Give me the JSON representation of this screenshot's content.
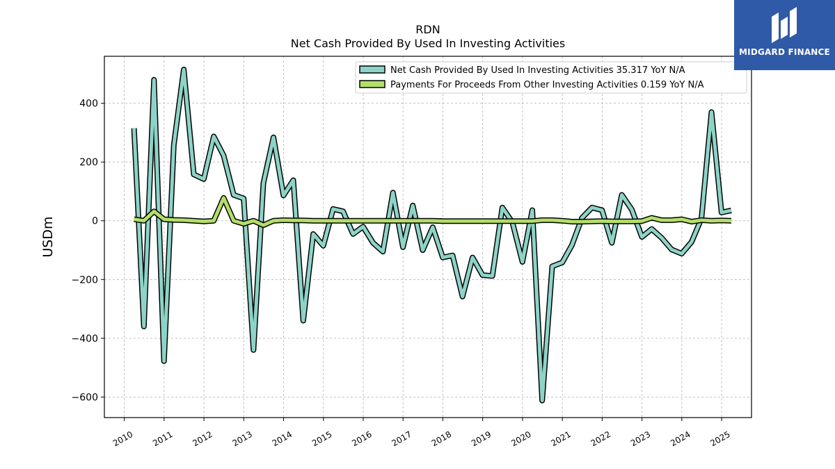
{
  "chart_data": {
    "type": "line",
    "title": "RDN",
    "subtitle": "Net Cash Provided By Used In Investing Activities",
    "ylabel": "USDm",
    "xlabel": "",
    "xlim": [
      2009.5,
      2025.75
    ],
    "ylim": [
      -670,
      560
    ],
    "yticks": [
      400,
      200,
      0,
      -200,
      -400,
      -600
    ],
    "ytick_labels": [
      "400",
      "200",
      "0",
      "−200",
      "−400",
      "−600"
    ],
    "xticks": [
      2010,
      2011,
      2012,
      2013,
      2014,
      2015,
      2016,
      2017,
      2018,
      2019,
      2020,
      2021,
      2022,
      2023,
      2024,
      2025
    ],
    "xtick_labels": [
      "2010",
      "2011",
      "2012",
      "2013",
      "2014",
      "2015",
      "2016",
      "2017",
      "2018",
      "2019",
      "2020",
      "2021",
      "2022",
      "2023",
      "2024",
      "2025"
    ],
    "grid": true,
    "legend_position": "top-right",
    "series": [
      {
        "name": "Net Cash Provided By Used In Investing Activities",
        "legend_label": "Net Cash Provided By Used In Investing Activities  35.317 YoY N/A",
        "color": "#8dd3c7",
        "points": [
          [
            "2010-03-31",
            315
          ],
          [
            "2010-06-30",
            -360
          ],
          [
            "2010-09-30",
            480
          ],
          [
            "2010-12-31",
            -478
          ],
          [
            "2011-03-31",
            258
          ],
          [
            "2011-06-30",
            515
          ],
          [
            "2011-09-30",
            158
          ],
          [
            "2011-12-31",
            142
          ],
          [
            "2012-03-31",
            287
          ],
          [
            "2012-06-30",
            222
          ],
          [
            "2012-09-30",
            88
          ],
          [
            "2012-12-31",
            76
          ],
          [
            "2013-03-31",
            -440
          ],
          [
            "2013-06-30",
            128
          ],
          [
            "2013-09-30",
            284
          ],
          [
            "2013-12-31",
            86
          ],
          [
            "2014-03-31",
            138
          ],
          [
            "2014-06-30",
            -340
          ],
          [
            "2014-09-30",
            -45
          ],
          [
            "2014-12-31",
            -85
          ],
          [
            "2015-03-31",
            40
          ],
          [
            "2015-06-30",
            32
          ],
          [
            "2015-09-30",
            -45
          ],
          [
            "2015-12-31",
            -20
          ],
          [
            "2016-03-31",
            -75
          ],
          [
            "2016-06-30",
            -105
          ],
          [
            "2016-09-30",
            96
          ],
          [
            "2016-12-31",
            -90
          ],
          [
            "2017-03-31",
            52
          ],
          [
            "2017-06-30",
            -100
          ],
          [
            "2017-09-30",
            -22
          ],
          [
            "2017-12-31",
            -125
          ],
          [
            "2018-03-31",
            -118
          ],
          [
            "2018-06-30",
            -258
          ],
          [
            "2018-09-30",
            -125
          ],
          [
            "2018-12-31",
            -185
          ],
          [
            "2019-03-31",
            -188
          ],
          [
            "2019-06-30",
            45
          ],
          [
            "2019-09-30",
            -5
          ],
          [
            "2019-12-31",
            -140
          ],
          [
            "2020-03-31",
            36
          ],
          [
            "2020-06-30",
            -612
          ],
          [
            "2020-09-30",
            -155
          ],
          [
            "2020-12-31",
            -142
          ],
          [
            "2021-03-31",
            -82
          ],
          [
            "2021-06-30",
            10
          ],
          [
            "2021-09-30",
            45
          ],
          [
            "2021-12-31",
            36
          ],
          [
            "2022-03-31",
            -75
          ],
          [
            "2022-06-30",
            88
          ],
          [
            "2022-09-30",
            38
          ],
          [
            "2022-12-31",
            -55
          ],
          [
            "2023-03-31",
            -28
          ],
          [
            "2023-06-30",
            -58
          ],
          [
            "2023-09-30",
            -98
          ],
          [
            "2023-12-31",
            -112
          ],
          [
            "2024-03-31",
            -72
          ],
          [
            "2024-06-30",
            8
          ],
          [
            "2024-09-30",
            370
          ],
          [
            "2024-12-31",
            28
          ],
          [
            "2025-03-31",
            35.317
          ]
        ]
      },
      {
        "name": "Payments For Proceeds From Other Investing Activities",
        "legend_label": "Payments For Proceeds From Other Investing Activities  0.159 YoY N/A",
        "color": "#b3de69",
        "points": [
          [
            "2010-03-31",
            5
          ],
          [
            "2010-06-30",
            0
          ],
          [
            "2010-09-30",
            32
          ],
          [
            "2010-12-31",
            5
          ],
          [
            "2011-03-31",
            3
          ],
          [
            "2011-06-30",
            2
          ],
          [
            "2011-09-30",
            0
          ],
          [
            "2011-12-31",
            -2
          ],
          [
            "2012-03-31",
            0
          ],
          [
            "2012-06-30",
            78
          ],
          [
            "2012-09-30",
            0
          ],
          [
            "2012-12-31",
            -10
          ],
          [
            "2013-03-31",
            0
          ],
          [
            "2013-06-30",
            -15
          ],
          [
            "2013-09-30",
            0
          ],
          [
            "2013-12-31",
            2
          ],
          [
            "2014-03-31",
            1
          ],
          [
            "2014-06-30",
            1
          ],
          [
            "2014-09-30",
            0
          ],
          [
            "2014-12-31",
            0
          ],
          [
            "2015-03-31",
            0
          ],
          [
            "2015-06-30",
            0
          ],
          [
            "2015-09-30",
            0
          ],
          [
            "2015-12-31",
            0
          ],
          [
            "2016-03-31",
            0
          ],
          [
            "2016-06-30",
            0
          ],
          [
            "2016-09-30",
            0
          ],
          [
            "2016-12-31",
            0
          ],
          [
            "2017-03-31",
            0
          ],
          [
            "2017-06-30",
            0
          ],
          [
            "2017-09-30",
            0
          ],
          [
            "2017-12-31",
            -1
          ],
          [
            "2018-03-31",
            -1
          ],
          [
            "2018-06-30",
            -1
          ],
          [
            "2018-09-30",
            -1
          ],
          [
            "2018-12-31",
            -1
          ],
          [
            "2019-03-31",
            -1
          ],
          [
            "2019-06-30",
            -1
          ],
          [
            "2019-09-30",
            -1
          ],
          [
            "2019-12-31",
            -1
          ],
          [
            "2020-03-31",
            -1
          ],
          [
            "2020-06-30",
            2
          ],
          [
            "2020-09-30",
            2
          ],
          [
            "2020-12-31",
            0
          ],
          [
            "2021-03-31",
            -3
          ],
          [
            "2021-06-30",
            -3
          ],
          [
            "2021-09-30",
            -2
          ],
          [
            "2021-12-31",
            -1
          ],
          [
            "2022-03-31",
            -2
          ],
          [
            "2022-06-30",
            -2
          ],
          [
            "2022-09-30",
            -2
          ],
          [
            "2022-12-31",
            -1
          ],
          [
            "2023-03-31",
            10
          ],
          [
            "2023-06-30",
            2
          ],
          [
            "2023-09-30",
            2
          ],
          [
            "2023-12-31",
            5
          ],
          [
            "2024-03-31",
            -3
          ],
          [
            "2024-06-30",
            2
          ],
          [
            "2024-09-30",
            0
          ],
          [
            "2024-12-31",
            1
          ],
          [
            "2025-03-31",
            0.159
          ]
        ]
      }
    ]
  },
  "logo": {
    "text": "MIDGARD FINANCE",
    "color": "#2f5aa8"
  }
}
